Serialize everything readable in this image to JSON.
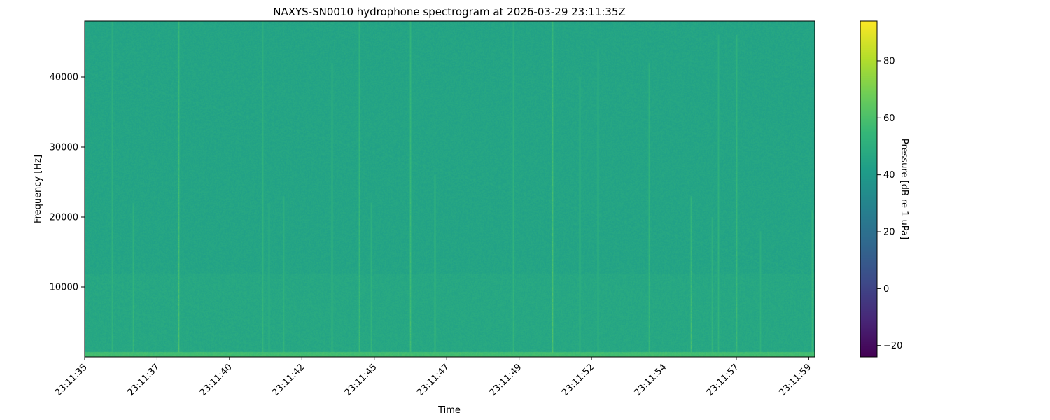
{
  "chart_data": {
    "type": "heatmap",
    "title": "NAXYS-SN0010 hydrophone spectrogram at 2026-03-29 23:11:35Z",
    "xlabel": "Time",
    "ylabel": "Frequency [Hz]",
    "colorbar_label": "Pressure [dB re 1 uPa]",
    "colormap": "viridis",
    "xlim": [
      "23:11:35.0",
      "23:11:59.2"
    ],
    "ylim": [
      0,
      48000
    ],
    "clim": [
      -24,
      94
    ],
    "x_ticks": [
      "23:11:35",
      "23:11:37",
      "23:11:40",
      "23:11:42",
      "23:11:45",
      "23:11:47",
      "23:11:49",
      "23:11:52",
      "23:11:54",
      "23:11:57",
      "23:11:59"
    ],
    "x_tick_seconds": [
      35.0,
      37.4,
      39.8,
      42.2,
      44.6,
      47.0,
      49.4,
      51.8,
      54.2,
      56.6,
      59.0
    ],
    "y_ticks": [
      10000,
      20000,
      30000,
      40000
    ],
    "colorbar_ticks": [
      -20,
      0,
      20,
      40,
      60,
      80
    ],
    "background_level_db": 45,
    "low_frequency_band": {
      "max_hz": 800,
      "level_db": 58
    },
    "transients": [
      {
        "time": "23:11:35.9",
        "max_hz": 48000,
        "level_db": 54
      },
      {
        "time": "23:11:36.6",
        "max_hz": 22000,
        "level_db": 56
      },
      {
        "time": "23:11:38.1",
        "max_hz": 48000,
        "level_db": 62
      },
      {
        "time": "23:11:40.9",
        "max_hz": 48000,
        "level_db": 55
      },
      {
        "time": "23:11:41.1",
        "max_hz": 22000,
        "level_db": 55
      },
      {
        "time": "23:11:41.6",
        "max_hz": 23000,
        "level_db": 54
      },
      {
        "time": "23:11:43.2",
        "max_hz": 42000,
        "level_db": 56
      },
      {
        "time": "23:11:44.1",
        "max_hz": 48000,
        "level_db": 58
      },
      {
        "time": "23:11:44.5",
        "max_hz": 22000,
        "level_db": 55
      },
      {
        "time": "23:11:45.8",
        "max_hz": 48000,
        "level_db": 60
      },
      {
        "time": "23:11:46.6",
        "max_hz": 26000,
        "level_db": 59
      },
      {
        "time": "23:11:49.2",
        "max_hz": 48000,
        "level_db": 55
      },
      {
        "time": "23:11:50.5",
        "max_hz": 48000,
        "level_db": 63
      },
      {
        "time": "23:11:51.4",
        "max_hz": 40000,
        "level_db": 56
      },
      {
        "time": "23:11:52.0",
        "max_hz": 44000,
        "level_db": 55
      },
      {
        "time": "23:11:53.7",
        "max_hz": 42000,
        "level_db": 56
      },
      {
        "time": "23:11:55.1",
        "max_hz": 23000,
        "level_db": 60
      },
      {
        "time": "23:11:55.8",
        "max_hz": 20000,
        "level_db": 55
      },
      {
        "time": "23:11:56.0",
        "max_hz": 46000,
        "level_db": 55
      },
      {
        "time": "23:11:56.6",
        "max_hz": 46000,
        "level_db": 58
      },
      {
        "time": "23:11:57.4",
        "max_hz": 18000,
        "level_db": 54
      },
      {
        "time": "23:11:59.1",
        "max_hz": 21000,
        "level_db": 58
      }
    ]
  }
}
